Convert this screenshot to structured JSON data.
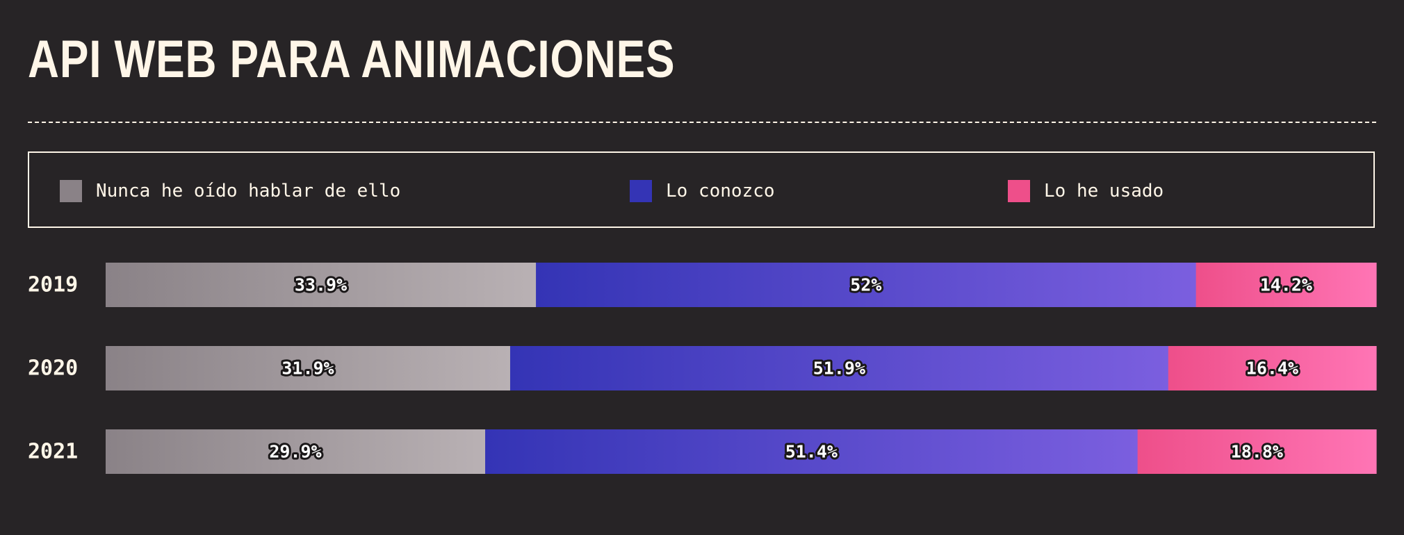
{
  "title": "API WEB PARA ANIMACIONES",
  "colors": {
    "background": "#272426",
    "text": "#fff6e8",
    "never_heard": [
      "#8a8287",
      "#b9b1b4"
    ],
    "know": [
      "#3434b5",
      "#7b5fdf"
    ],
    "used": [
      "#ee4f8a",
      "#ff75b5"
    ]
  },
  "chart_data": {
    "type": "bar",
    "orientation": "horizontal",
    "stacked": true,
    "normalized_percent": true,
    "legend_position": "top",
    "categories": [
      "2019",
      "2020",
      "2021"
    ],
    "series": [
      {
        "name": "Nunca he oído hablar de ello",
        "values": [
          33.9,
          31.9,
          29.9
        ],
        "labels": [
          "33.9%",
          "31.9%",
          "29.9%"
        ]
      },
      {
        "name": "Lo conozco",
        "values": [
          52,
          51.9,
          51.4
        ],
        "labels": [
          "52%",
          "51.9%",
          "51.4%"
        ]
      },
      {
        "name": "Lo he usado",
        "values": [
          14.2,
          16.4,
          18.8
        ],
        "labels": [
          "14.2%",
          "16.4%",
          "18.8%"
        ]
      }
    ]
  }
}
